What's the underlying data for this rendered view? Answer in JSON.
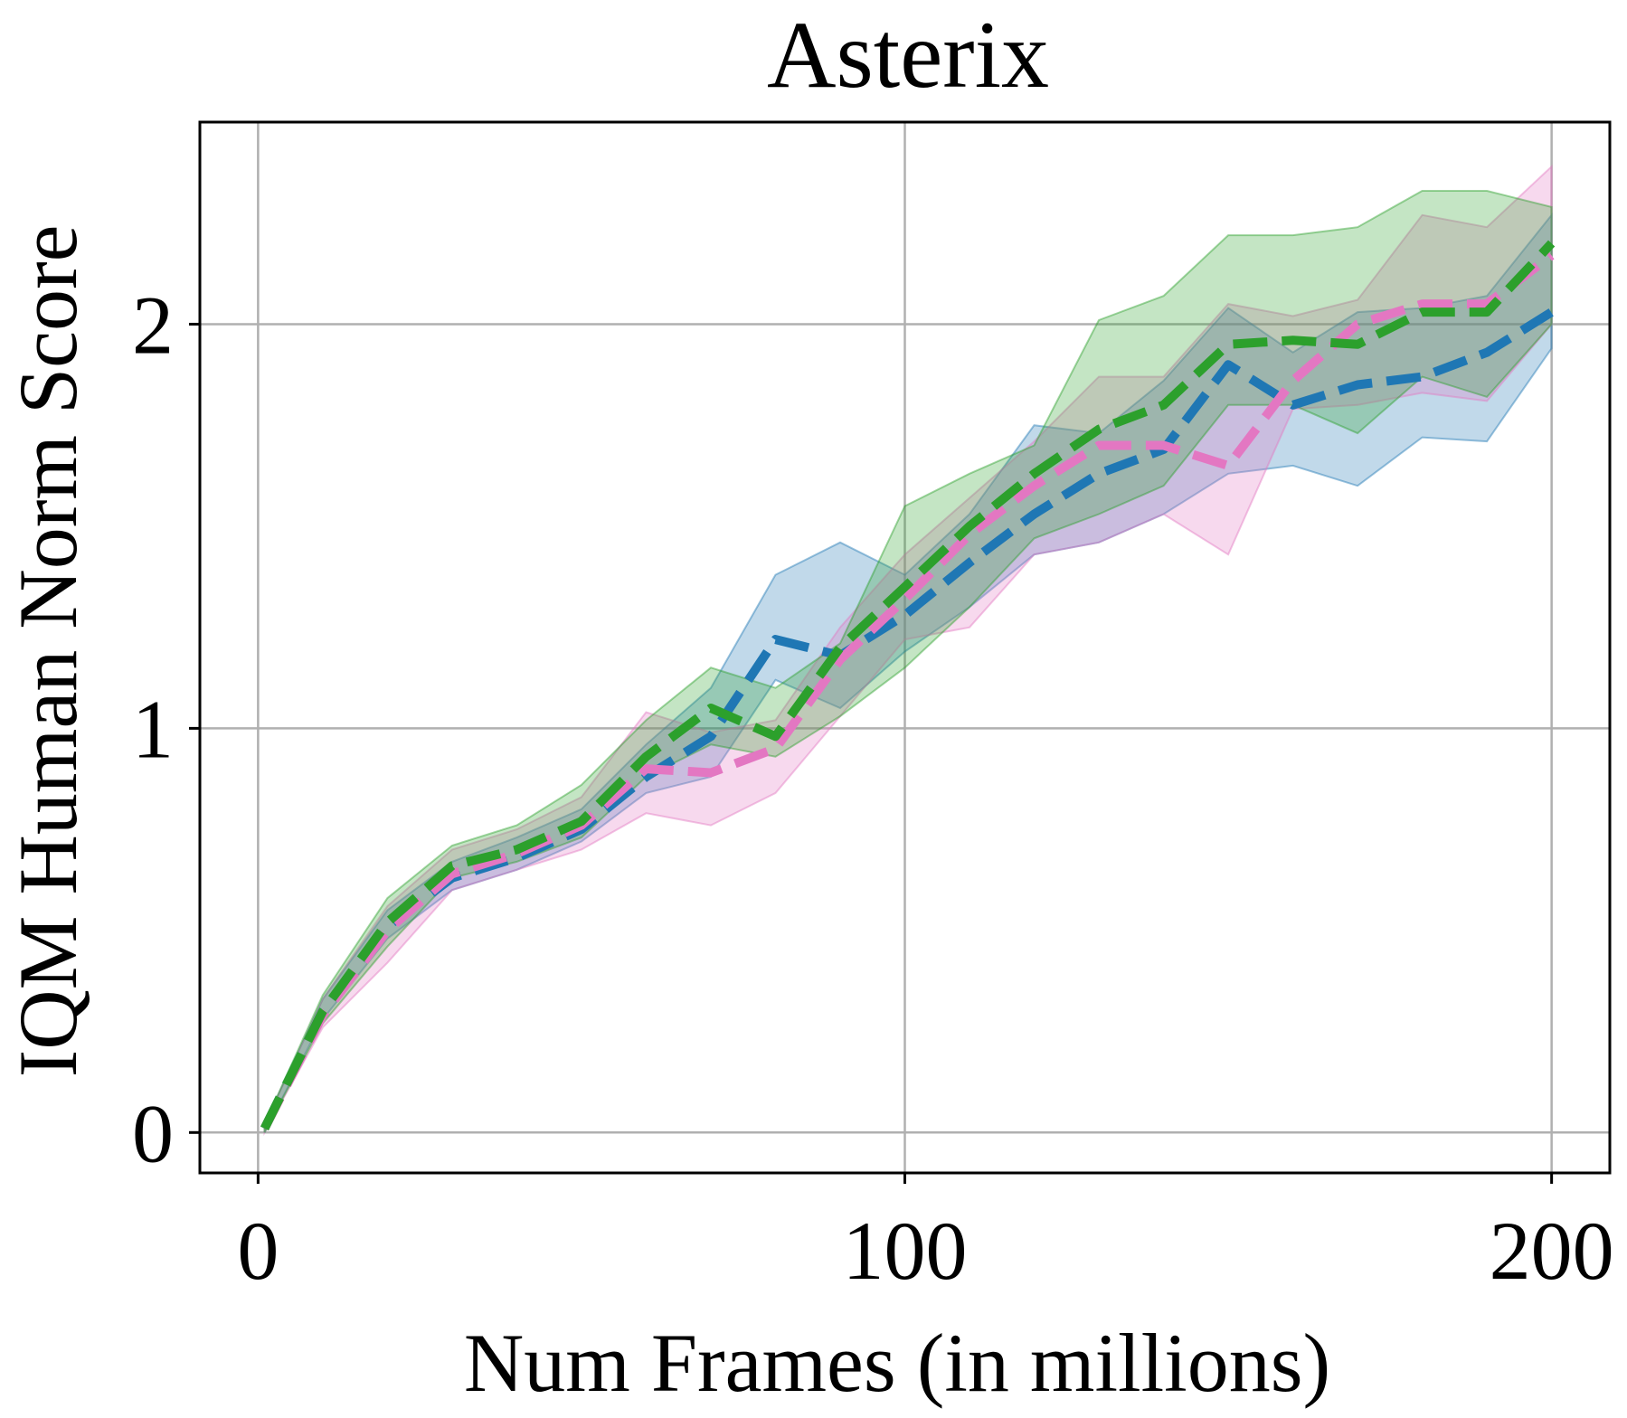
{
  "chart_data": {
    "type": "line",
    "title": "Asterix",
    "xlabel": "Num Frames (in millions)",
    "ylabel": "IQM Human Norm Score",
    "xlim": [
      -9,
      209
    ],
    "ylim": [
      -0.1,
      2.5
    ],
    "xticks": [
      0,
      100,
      200
    ],
    "yticks": [
      0,
      1,
      2
    ],
    "grid": true,
    "x": [
      1,
      10,
      20,
      30,
      40,
      50,
      60,
      70,
      80,
      90,
      100,
      110,
      120,
      130,
      140,
      150,
      160,
      170,
      180,
      190,
      200
    ],
    "series": [
      {
        "color": "#1f77b4",
        "values": [
          0.01,
          0.3,
          0.51,
          0.63,
          0.68,
          0.75,
          0.88,
          0.98,
          1.22,
          1.18,
          1.28,
          1.41,
          1.53,
          1.63,
          1.69,
          1.9,
          1.8,
          1.85,
          1.87,
          1.93,
          2.03
        ],
        "lower": [
          0.0,
          0.28,
          0.48,
          0.6,
          0.65,
          0.72,
          0.84,
          0.88,
          1.12,
          1.05,
          1.19,
          1.3,
          1.43,
          1.46,
          1.53,
          1.63,
          1.65,
          1.6,
          1.72,
          1.71,
          1.94
        ],
        "upper": [
          0.02,
          0.33,
          0.55,
          0.67,
          0.73,
          0.8,
          0.96,
          1.1,
          1.38,
          1.46,
          1.38,
          1.53,
          1.75,
          1.73,
          1.86,
          2.04,
          1.93,
          2.03,
          2.04,
          2.07,
          2.27
        ]
      },
      {
        "color": "#e377c2",
        "values": [
          0.01,
          0.29,
          0.5,
          0.64,
          0.69,
          0.76,
          0.9,
          0.89,
          0.95,
          1.17,
          1.32,
          1.48,
          1.6,
          1.7,
          1.7,
          1.65,
          1.86,
          2.0,
          2.05,
          2.05,
          2.17
        ],
        "lower": [
          0.0,
          0.26,
          0.42,
          0.6,
          0.65,
          0.7,
          0.79,
          0.76,
          0.84,
          1.03,
          1.22,
          1.25,
          1.43,
          1.46,
          1.53,
          1.43,
          1.79,
          1.8,
          1.83,
          1.81,
          2.0
        ],
        "upper": [
          0.02,
          0.33,
          0.56,
          0.7,
          0.75,
          0.83,
          1.04,
          0.99,
          1.02,
          1.25,
          1.43,
          1.57,
          1.71,
          1.87,
          1.87,
          2.05,
          2.02,
          2.06,
          2.27,
          2.24,
          2.39
        ]
      },
      {
        "color": "#2ca02c",
        "values": [
          0.01,
          0.3,
          0.52,
          0.66,
          0.7,
          0.77,
          0.93,
          1.05,
          0.98,
          1.2,
          1.35,
          1.5,
          1.63,
          1.74,
          1.8,
          1.95,
          1.96,
          1.95,
          2.03,
          2.03,
          2.2
        ],
        "lower": [
          0.0,
          0.27,
          0.46,
          0.63,
          0.67,
          0.73,
          0.88,
          0.96,
          0.93,
          1.03,
          1.15,
          1.3,
          1.47,
          1.53,
          1.6,
          1.8,
          1.8,
          1.73,
          1.87,
          1.82,
          2.0
        ],
        "upper": [
          0.02,
          0.34,
          0.58,
          0.71,
          0.76,
          0.86,
          1.02,
          1.15,
          1.1,
          1.21,
          1.55,
          1.63,
          1.7,
          2.01,
          2.07,
          2.22,
          2.22,
          2.24,
          2.33,
          2.33,
          2.29
        ]
      }
    ]
  }
}
